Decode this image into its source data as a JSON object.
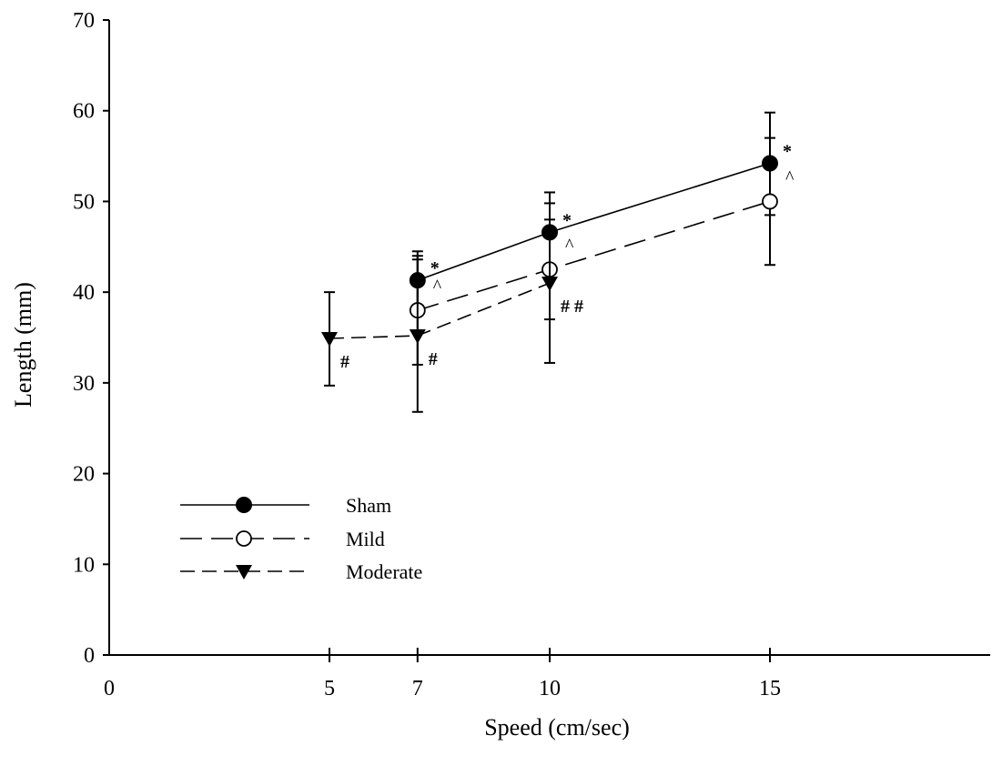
{
  "chart_data": {
    "type": "line",
    "title": "",
    "xlabel": "Speed (cm/sec)",
    "ylabel": "Length (mm)",
    "xlim": [
      0,
      20
    ],
    "ylim": [
      0,
      70
    ],
    "x_ticks": [
      "0",
      "5",
      "7",
      "10",
      "15"
    ],
    "y_ticks": [
      "0",
      "10",
      "20",
      "30",
      "40",
      "50",
      "60",
      "70"
    ],
    "grid": false,
    "legend_placement": "lower-left",
    "series": [
      {
        "name": "Sham",
        "marker": "filled-circle",
        "line_style": "solid",
        "points": [
          {
            "x": 7,
            "y": 41.3,
            "err_low": 38.0,
            "err_high": 44.5,
            "annotation": "*"
          },
          {
            "x": 10,
            "y": 46.6,
            "err_low": 42.0,
            "err_high": 51.0,
            "annotation": "*"
          },
          {
            "x": 15,
            "y": 54.2,
            "err_low": 48.5,
            "err_high": 59.8,
            "annotation": "*"
          }
        ]
      },
      {
        "name": "Mild",
        "marker": "open-circle",
        "line_style": "long-dash",
        "points": [
          {
            "x": 7,
            "y": 38.0,
            "err_low": 32.0,
            "err_high": 44.0,
            "annotation": "^"
          },
          {
            "x": 10,
            "y": 42.5,
            "err_low": 37.0,
            "err_high": 48.0,
            "annotation": "^"
          },
          {
            "x": 15,
            "y": 50.0,
            "err_low": 43.0,
            "err_high": 57.0,
            "annotation": "^"
          }
        ]
      },
      {
        "name": "Moderate",
        "marker": "filled-triangle-down",
        "line_style": "dash",
        "points": [
          {
            "x": 5,
            "y": 34.9,
            "err_low": 29.7,
            "err_high": 40.0,
            "annotation": "#"
          },
          {
            "x": 7,
            "y": 35.2,
            "err_low": 26.8,
            "err_high": 43.6,
            "annotation": "#"
          },
          {
            "x": 10,
            "y": 41.0,
            "err_low": 32.2,
            "err_high": 49.8,
            "annotation": "# #"
          }
        ]
      }
    ]
  }
}
